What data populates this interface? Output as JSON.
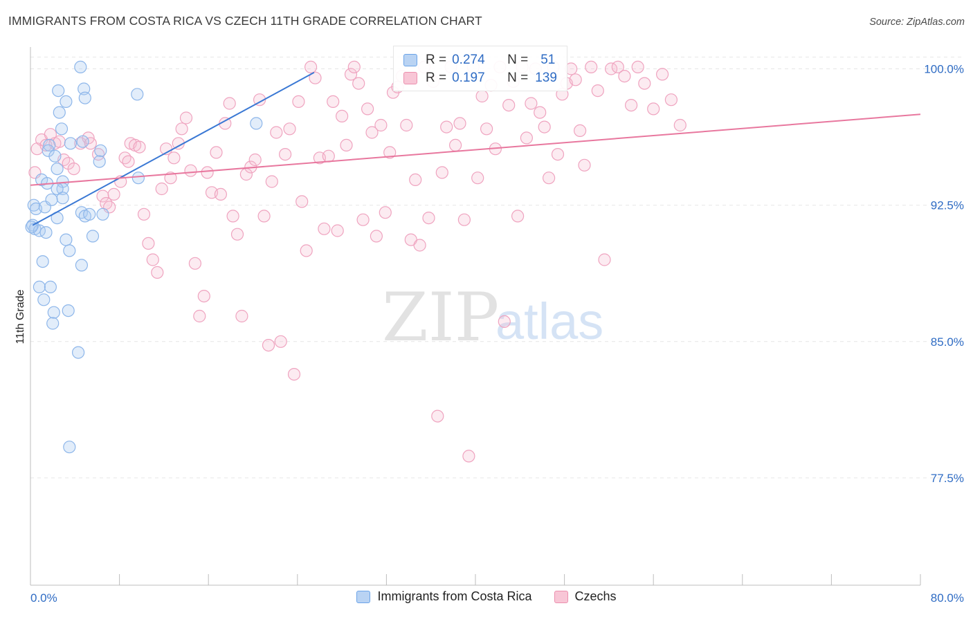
{
  "header": {
    "title": "IMMIGRANTS FROM COSTA RICA VS CZECH 11TH GRADE CORRELATION CHART",
    "source": "Source: ZipAtlas.com"
  },
  "watermark": {
    "zip": "ZIP",
    "atlas": "atlas"
  },
  "stats": {
    "rows": [
      {
        "r_label": "R =",
        "r_value": "0.274",
        "n_label": "N =",
        "n_value": "51",
        "color": "#6aa3e8",
        "fill": "#b9d3f3"
      },
      {
        "r_label": "R =",
        "r_value": "0.197",
        "n_label": "N =",
        "n_value": "139",
        "color": "#ec8fae",
        "fill": "#f8c6d6"
      }
    ]
  },
  "legend": {
    "items": [
      {
        "label": "Immigrants from Costa Rica",
        "color": "#6aa3e8",
        "fill": "#b9d3f3"
      },
      {
        "label": "Czechs",
        "color": "#ec8fae",
        "fill": "#f8c6d6"
      }
    ]
  },
  "chart_data": {
    "type": "scatter",
    "title": "IMMIGRANTS FROM COSTA RICA VS CZECH 11TH GRADE CORRELATION CHART",
    "ylabel": "11th Grade",
    "xlabel": "",
    "xlim": [
      0,
      80
    ],
    "ylim": [
      71.6,
      101.2
    ],
    "x_ticks": [
      0,
      80
    ],
    "x_tick_labels": [
      "0.0%",
      "80.0%"
    ],
    "y_ticks": [
      77.5,
      85.0,
      92.5,
      100.0
    ],
    "y_tick_labels": [
      "77.5%",
      "85.0%",
      "92.5%",
      "100.0%"
    ],
    "grid": true,
    "legend_position": "bottom",
    "series": [
      {
        "name": "Immigrants from Costa Rica",
        "color": "#3a78d4",
        "points": [
          [
            4.5,
            100.1
          ],
          [
            4.8,
            98.9
          ],
          [
            4.9,
            98.4
          ],
          [
            9.6,
            98.6
          ],
          [
            2.5,
            98.8
          ],
          [
            3.2,
            98.2
          ],
          [
            2.6,
            97.6
          ],
          [
            20.3,
            97.0
          ],
          [
            2.8,
            96.7
          ],
          [
            1.7,
            95.8
          ],
          [
            3.6,
            95.9
          ],
          [
            1.6,
            95.5
          ],
          [
            6.3,
            95.5
          ],
          [
            2.2,
            95.2
          ],
          [
            6.2,
            94.9
          ],
          [
            2.4,
            94.5
          ],
          [
            1.0,
            93.9
          ],
          [
            9.7,
            94.0
          ],
          [
            1.5,
            93.7
          ],
          [
            2.9,
            93.8
          ],
          [
            2.9,
            93.4
          ],
          [
            2.4,
            93.4
          ],
          [
            0.3,
            92.5
          ],
          [
            0.5,
            92.3
          ],
          [
            1.3,
            92.4
          ],
          [
            2.9,
            92.9
          ],
          [
            1.9,
            92.8
          ],
          [
            4.6,
            92.1
          ],
          [
            6.5,
            92.0
          ],
          [
            4.9,
            91.9
          ],
          [
            2.4,
            91.8
          ],
          [
            0.2,
            91.4
          ],
          [
            0.4,
            91.2
          ],
          [
            0.8,
            91.1
          ],
          [
            1.4,
            91.0
          ],
          [
            5.6,
            90.8
          ],
          [
            3.2,
            90.6
          ],
          [
            3.5,
            90.0
          ],
          [
            1.1,
            89.4
          ],
          [
            4.6,
            89.2
          ],
          [
            0.8,
            88.0
          ],
          [
            1.8,
            88.0
          ],
          [
            1.2,
            87.3
          ],
          [
            3.4,
            86.7
          ],
          [
            2.1,
            86.6
          ],
          [
            2.0,
            86.0
          ],
          [
            4.3,
            84.4
          ],
          [
            3.5,
            79.2
          ],
          [
            0.1,
            91.3
          ],
          [
            5.3,
            92.0
          ],
          [
            4.7,
            96.0
          ]
        ],
        "trend": {
          "x": [
            0.2,
            25.5
          ],
          "y": [
            91.4,
            99.8
          ]
        }
      },
      {
        "name": "Czechs",
        "color": "#e8779e",
        "points": [
          [
            0.4,
            94.3
          ],
          [
            0.6,
            95.6
          ],
          [
            1.0,
            96.1
          ],
          [
            1.4,
            95.8
          ],
          [
            1.8,
            96.4
          ],
          [
            2.2,
            95.9
          ],
          [
            2.6,
            96.0
          ],
          [
            3.0,
            95.0
          ],
          [
            3.4,
            94.8
          ],
          [
            3.9,
            94.5
          ],
          [
            4.5,
            95.9
          ],
          [
            5.2,
            96.2
          ],
          [
            5.4,
            95.9
          ],
          [
            6.1,
            95.3
          ],
          [
            6.5,
            93.0
          ],
          [
            6.8,
            92.6
          ],
          [
            7.1,
            92.4
          ],
          [
            7.5,
            93.1
          ],
          [
            8.1,
            93.8
          ],
          [
            8.5,
            95.1
          ],
          [
            8.8,
            94.9
          ],
          [
            9.0,
            95.9
          ],
          [
            9.4,
            95.8
          ],
          [
            9.8,
            95.7
          ],
          [
            10.2,
            92.0
          ],
          [
            10.6,
            90.4
          ],
          [
            11.0,
            89.5
          ],
          [
            11.4,
            88.8
          ],
          [
            11.8,
            93.4
          ],
          [
            12.2,
            95.6
          ],
          [
            12.6,
            94.0
          ],
          [
            12.9,
            95.1
          ],
          [
            13.3,
            95.9
          ],
          [
            13.6,
            96.7
          ],
          [
            14.0,
            97.3
          ],
          [
            14.4,
            94.4
          ],
          [
            14.8,
            89.3
          ],
          [
            15.2,
            86.4
          ],
          [
            15.6,
            87.5
          ],
          [
            15.9,
            94.3
          ],
          [
            16.3,
            93.2
          ],
          [
            16.7,
            95.4
          ],
          [
            17.1,
            93.1
          ],
          [
            17.5,
            97.0
          ],
          [
            17.9,
            98.1
          ],
          [
            18.2,
            91.9
          ],
          [
            18.6,
            90.9
          ],
          [
            19.0,
            86.4
          ],
          [
            19.4,
            94.2
          ],
          [
            19.8,
            94.6
          ],
          [
            20.2,
            95.0
          ],
          [
            20.6,
            98.3
          ],
          [
            21.0,
            91.9
          ],
          [
            21.4,
            84.8
          ],
          [
            21.7,
            93.8
          ],
          [
            22.1,
            96.5
          ],
          [
            22.5,
            85.0
          ],
          [
            22.9,
            95.3
          ],
          [
            23.3,
            96.7
          ],
          [
            23.7,
            83.2
          ],
          [
            24.1,
            98.2
          ],
          [
            24.4,
            92.7
          ],
          [
            24.8,
            90.0
          ],
          [
            25.2,
            100.1
          ],
          [
            25.6,
            99.5
          ],
          [
            26.0,
            95.1
          ],
          [
            26.4,
            91.2
          ],
          [
            26.8,
            95.2
          ],
          [
            27.2,
            98.2
          ],
          [
            27.6,
            91.1
          ],
          [
            28.0,
            97.4
          ],
          [
            28.4,
            95.8
          ],
          [
            28.8,
            99.7
          ],
          [
            29.1,
            100.1
          ],
          [
            29.5,
            99.2
          ],
          [
            29.9,
            91.7
          ],
          [
            30.3,
            97.8
          ],
          [
            30.7,
            96.5
          ],
          [
            31.1,
            90.8
          ],
          [
            31.5,
            96.9
          ],
          [
            31.9,
            92.1
          ],
          [
            32.3,
            95.4
          ],
          [
            32.6,
            98.7
          ],
          [
            33.0,
            99.0
          ],
          [
            33.4,
            99.6
          ],
          [
            33.8,
            96.9
          ],
          [
            34.2,
            90.6
          ],
          [
            34.6,
            93.9
          ],
          [
            35.0,
            90.3
          ],
          [
            35.4,
            100.1
          ],
          [
            35.8,
            91.8
          ],
          [
            36.2,
            99.3
          ],
          [
            36.6,
            80.9
          ],
          [
            37.0,
            94.3
          ],
          [
            37.4,
            96.8
          ],
          [
            37.8,
            100.1
          ],
          [
            38.2,
            95.8
          ],
          [
            38.6,
            97.0
          ],
          [
            39.0,
            91.7
          ],
          [
            39.4,
            78.7
          ],
          [
            39.8,
            100.1
          ],
          [
            40.2,
            94.0
          ],
          [
            40.6,
            98.5
          ],
          [
            41.0,
            96.7
          ],
          [
            41.4,
            99.1
          ],
          [
            41.8,
            95.6
          ],
          [
            42.2,
            100.1
          ],
          [
            42.6,
            86.1
          ],
          [
            43.0,
            98.0
          ],
          [
            43.4,
            99.3
          ],
          [
            43.8,
            91.9
          ],
          [
            44.2,
            100.1
          ],
          [
            44.6,
            96.2
          ],
          [
            45.0,
            98.1
          ],
          [
            45.4,
            100.0
          ],
          [
            45.8,
            97.6
          ],
          [
            46.2,
            96.8
          ],
          [
            46.6,
            94.0
          ],
          [
            47.0,
            100.1
          ],
          [
            47.4,
            95.3
          ],
          [
            47.8,
            98.6
          ],
          [
            48.2,
            99.2
          ],
          [
            48.6,
            100.0
          ],
          [
            49.0,
            99.4
          ],
          [
            49.4,
            96.6
          ],
          [
            49.8,
            94.7
          ],
          [
            50.4,
            100.1
          ],
          [
            51.0,
            98.8
          ],
          [
            51.6,
            89.5
          ],
          [
            52.2,
            100.0
          ],
          [
            52.8,
            100.1
          ],
          [
            53.4,
            99.6
          ],
          [
            54.0,
            98.0
          ],
          [
            54.6,
            100.1
          ],
          [
            55.2,
            99.2
          ],
          [
            56.0,
            97.8
          ],
          [
            56.8,
            99.7
          ],
          [
            57.6,
            98.3
          ],
          [
            58.4,
            96.9
          ]
        ],
        "trend": {
          "x": [
            0,
            80
          ],
          "y": [
            93.6,
            97.5
          ]
        }
      }
    ]
  }
}
